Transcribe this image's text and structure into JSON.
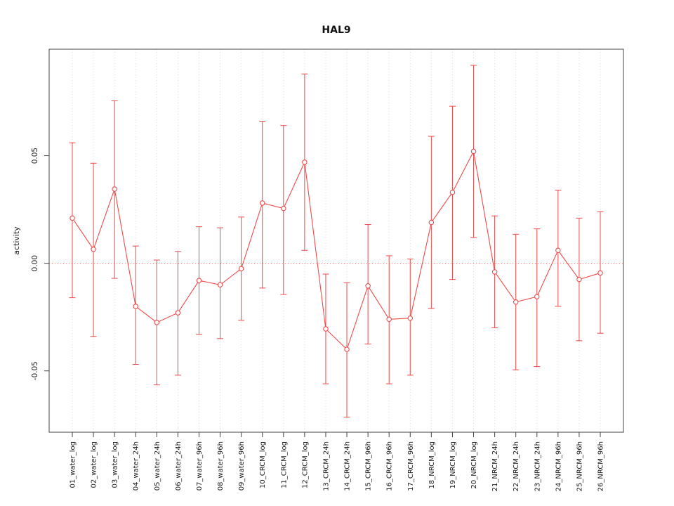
{
  "colors": {
    "accent": "#ef4a4a",
    "grid": "#d8d8d8",
    "box": "#444444",
    "text": "#1a1a1a"
  },
  "chart_data": {
    "type": "line",
    "title": "HAL9",
    "xlabel": "",
    "ylabel": "activity",
    "ylim": [
      -0.0785,
      0.0995
    ],
    "yticks": [
      -0.05,
      0,
      0.05
    ],
    "ytick_labels": [
      "-0.05",
      "0.00",
      "0.05"
    ],
    "grid": "vertical-dotted",
    "reference_line_y": 0,
    "legend_position": "none",
    "categories": [
      "01_water_log",
      "02_water_log",
      "03_water_log",
      "04_water_24h",
      "05_water_24h",
      "06_water_24h",
      "07_water_96h",
      "08_water_96h",
      "09_water_96h",
      "10_CRCM_log",
      "11_CRCM_log",
      "12_CRCM_log",
      "13_CRCM_24h",
      "14_CRCM_24h",
      "15_CRCM_96h",
      "16_CRCM_96h",
      "17_CRCM_96h",
      "18_NRCM_log",
      "19_NRCM_log",
      "20_NRCM_log",
      "21_NRCM_24h",
      "22_NRCM_24h",
      "23_NRCM_24h",
      "24_NRCM_96h",
      "25_NRCM_96h",
      "26_NRCM_96h"
    ],
    "series": [
      {
        "name": "activity",
        "marker": "open-circle",
        "values": [
          0.021,
          0.0065,
          0.0345,
          -0.02,
          -0.0275,
          -0.023,
          -0.008,
          -0.01,
          -0.0025,
          0.028,
          0.0255,
          0.047,
          -0.0305,
          -0.04,
          -0.0105,
          -0.026,
          -0.0255,
          0.019,
          0.033,
          0.052,
          -0.004,
          -0.018,
          -0.0155,
          0.006,
          -0.0075,
          -0.0045
        ],
        "upper": [
          0.056,
          0.0465,
          0.0755,
          0.008,
          0.0015,
          0.0055,
          0.017,
          0.0165,
          0.0215,
          0.066,
          0.064,
          0.088,
          -0.005,
          -0.009,
          0.018,
          0.0035,
          0.002,
          0.059,
          0.073,
          0.092,
          0.022,
          0.0135,
          0.016,
          0.034,
          0.021,
          0.024
        ],
        "lower": [
          -0.016,
          -0.034,
          -0.007,
          -0.047,
          -0.0565,
          -0.052,
          -0.033,
          -0.035,
          -0.0265,
          -0.0115,
          -0.0145,
          0.006,
          -0.056,
          -0.0715,
          -0.0375,
          -0.056,
          -0.052,
          -0.021,
          -0.0075,
          0.012,
          -0.03,
          -0.0495,
          -0.048,
          -0.02,
          -0.036,
          -0.0325
        ]
      }
    ]
  }
}
